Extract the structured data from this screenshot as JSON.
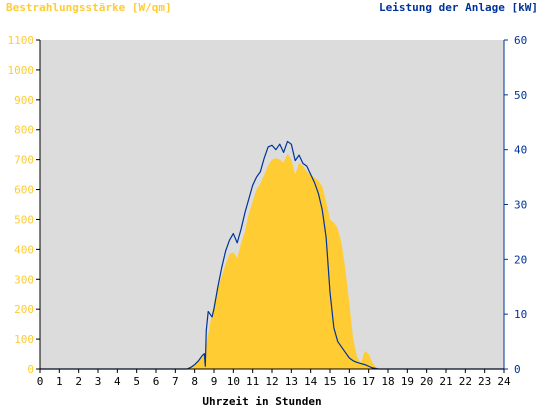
{
  "chart_data": {
    "type": "area",
    "left_axis_title": "Bestrahlungsstärke [W/qm]",
    "right_axis_title": "Leistung der Anlage [kW]",
    "xlabel": "Uhrzeit in Stunden",
    "xlim": [
      0,
      24
    ],
    "x_ticks": [
      "0",
      "1",
      "2",
      "3",
      "4",
      "5",
      "6",
      "7",
      "8",
      "9",
      "10",
      "11",
      "12",
      "13",
      "14",
      "15",
      "16",
      "17",
      "18",
      "19",
      "20",
      "21",
      "22",
      "23",
      "24"
    ],
    "y_left_lim": [
      0,
      1100
    ],
    "y_left_ticks": [
      "0",
      "100",
      "200",
      "300",
      "400",
      "500",
      "600",
      "700",
      "800",
      "900",
      "1000",
      "1100"
    ],
    "y_right_lim": [
      0,
      60
    ],
    "y_right_ticks": [
      "0",
      "10",
      "20",
      "30",
      "40",
      "50",
      "60"
    ],
    "grid": false,
    "colors": {
      "plot_bg": "#dcdcdc",
      "irradiance_fill": "#ffcc33",
      "power_line": "#003399",
      "left_text": "#ffcc33",
      "right_text": "#003399"
    },
    "series": [
      {
        "axis": "left",
        "type": "area",
        "x": [
          0,
          7.6,
          7.8,
          8.0,
          8.2,
          8.4,
          8.5,
          8.55,
          8.6,
          8.8,
          9.0,
          9.2,
          9.4,
          9.6,
          9.8,
          10.0,
          10.2,
          10.4,
          10.6,
          10.8,
          11.0,
          11.2,
          11.4,
          11.6,
          11.8,
          12.0,
          12.2,
          12.4,
          12.6,
          12.8,
          13.0,
          13.2,
          13.4,
          13.6,
          13.8,
          14.0,
          14.2,
          14.4,
          14.6,
          14.8,
          15.0,
          15.2,
          15.4,
          15.6,
          15.8,
          16.0,
          16.2,
          16.4,
          16.6,
          16.8,
          17.0,
          17.2,
          17.4,
          17.6,
          24
        ],
        "values": [
          0,
          0,
          5,
          15,
          30,
          45,
          55,
          20,
          80,
          150,
          220,
          270,
          310,
          350,
          385,
          390,
          370,
          420,
          460,
          520,
          560,
          600,
          620,
          650,
          680,
          700,
          705,
          700,
          690,
          720,
          700,
          650,
          690,
          680,
          660,
          650,
          640,
          630,
          610,
          560,
          500,
          490,
          470,
          420,
          330,
          220,
          100,
          40,
          20,
          60,
          50,
          20,
          5,
          0,
          0
        ]
      },
      {
        "axis": "right",
        "type": "line",
        "x": [
          0,
          7.6,
          7.8,
          8.0,
          8.2,
          8.4,
          8.5,
          8.55,
          8.6,
          8.7,
          8.9,
          9.0,
          9.2,
          9.4,
          9.6,
          9.8,
          10.0,
          10.2,
          10.4,
          10.6,
          10.8,
          11.0,
          11.2,
          11.4,
          11.6,
          11.8,
          12.0,
          12.2,
          12.4,
          12.6,
          12.8,
          13.0,
          13.2,
          13.4,
          13.6,
          13.8,
          14.0,
          14.2,
          14.4,
          14.6,
          14.8,
          15.0,
          15.2,
          15.4,
          15.6,
          15.8,
          16.0,
          16.2,
          16.4,
          16.6,
          16.8,
          17.0,
          17.2,
          17.5,
          24
        ],
        "values": [
          0,
          0,
          0.3,
          0.8,
          1.5,
          2.5,
          2.8,
          0.5,
          7.0,
          10.5,
          9.5,
          11.0,
          15.0,
          18.5,
          21.5,
          23.5,
          24.7,
          23.0,
          25.5,
          28.5,
          31.0,
          33.5,
          35.0,
          36.0,
          38.5,
          40.5,
          40.8,
          40.0,
          41.0,
          39.5,
          41.5,
          41.0,
          38.0,
          39.0,
          37.5,
          37.0,
          35.5,
          34.0,
          32.0,
          29.0,
          24.0,
          14.0,
          7.5,
          5.0,
          4.0,
          3.0,
          2.0,
          1.5,
          1.2,
          1.0,
          0.8,
          0.5,
          0.2,
          0,
          0
        ]
      }
    ]
  }
}
